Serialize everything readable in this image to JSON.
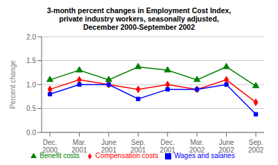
{
  "chart_data": {
    "type": "line",
    "title": "3-month percent changes in Employment Cost Index,\nprivate industry workers, seasonally adjusted,\nDecember 2000-September 2002",
    "ylabel": "Percent change",
    "categories": [
      "Dec.\n2000",
      "Mar.\n2001",
      "June\n2001",
      "Sep.\n2001",
      "Dec.\n2001",
      "Mar.\n2002",
      "June\n2002",
      "Sep.\n2002"
    ],
    "series": [
      {
        "name": "Compensation costs",
        "color": "#FF0000",
        "marker": "diamond",
        "values": [
          0.9,
          1.1,
          1.0,
          0.9,
          1.0,
          0.9,
          1.1,
          0.63
        ]
      },
      {
        "name": "Wages and salaries",
        "color": "#0000FF",
        "marker": "square",
        "values": [
          0.8,
          1.0,
          1.0,
          0.7,
          0.9,
          0.9,
          1.0,
          0.38
        ]
      },
      {
        "name": "Benefit costs",
        "color": "#008000",
        "marker": "triangle",
        "values": [
          1.1,
          1.3,
          1.1,
          1.37,
          1.3,
          1.1,
          1.37,
          0.97
        ]
      }
    ],
    "ylim": [
      0.0,
      2.0
    ],
    "yticks": [
      {
        "value": 0,
        "label": "0.0"
      },
      0.5,
      {
        "value": 1,
        "label": "1.0"
      },
      1.5,
      {
        "value": 2,
        "label": "2.0"
      }
    ],
    "grid": true,
    "legend": "bottom"
  }
}
